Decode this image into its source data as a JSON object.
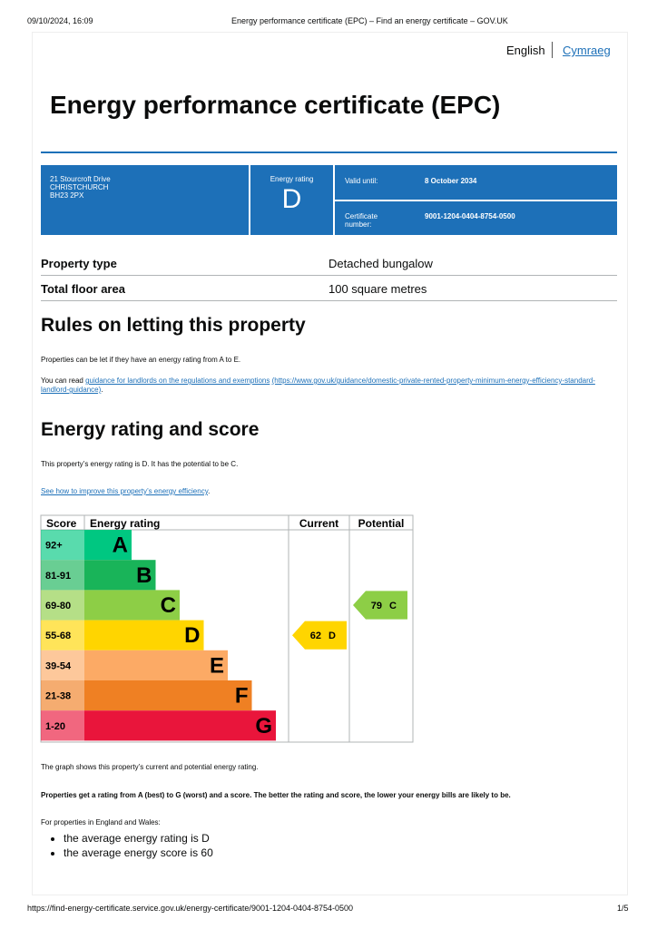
{
  "print_header": {
    "datetime": "09/10/2024, 16:09",
    "title": "Energy performance certificate (EPC) – Find an energy certificate – GOV.UK"
  },
  "language": {
    "current": "English",
    "other": "Cymraeg"
  },
  "title": "Energy performance certificate (EPC)",
  "summary": {
    "address": [
      "21 Stourcroft Drive",
      "CHRISTCHURCH",
      "BH23 2PX"
    ],
    "rating_label": "Energy rating",
    "rating": "D",
    "valid_until_label": "Valid until:",
    "valid_until": "8 October 2034",
    "cert_label": "Certificate number:",
    "cert_number": "9001-1204-0404-8754-0500"
  },
  "property": [
    {
      "label": "Property type",
      "value": "Detached bungalow"
    },
    {
      "label": "Total floor area",
      "value": "100 square metres"
    }
  ],
  "letting": {
    "heading": "Rules on letting this property",
    "text": "Properties can be let if they have an energy rating from A to E.",
    "link_prefix": "You can read",
    "link_text": "guidance for landlords on the regulations and exemptions",
    "link_url": "(https://www.gov.uk/guidance/domestic-private-rented-property-minimum-energy-efficiency-standard-landlord-guidance)",
    "link_suffix": "."
  },
  "rating_section": {
    "heading": "Energy rating and score",
    "text": "This property’s energy rating is D. It has the potential to be C.",
    "link": "See how to improve this property’s energy efficiency",
    "link_suffix": "."
  },
  "graph": {
    "headers": [
      "Score",
      "Energy rating",
      "Current",
      "Potential"
    ],
    "bands": [
      {
        "score": "92+",
        "letter": "A",
        "color": "#00c781"
      },
      {
        "score": "81-91",
        "letter": "B",
        "color": "#19b459"
      },
      {
        "score": "69-80",
        "letter": "C",
        "color": "#8dce46"
      },
      {
        "score": "55-68",
        "letter": "D",
        "color": "#ffd500"
      },
      {
        "score": "39-54",
        "letter": "E",
        "color": "#fcaa65"
      },
      {
        "score": "21-38",
        "letter": "F",
        "color": "#ef8023"
      },
      {
        "score": "1-20",
        "letter": "G",
        "color": "#e9153b"
      }
    ],
    "current": {
      "score": 62,
      "letter": "D"
    },
    "potential": {
      "score": 79,
      "letter": "C"
    }
  },
  "after_graph": {
    "caption": "The graph shows this property’s current and potential energy rating.",
    "explain_bold": "Properties get a rating from A (best) to G (worst) and a score.",
    "explain_rest": "The better the rating and score, the lower your energy bills are likely to be.",
    "average_intro": "For properties in England and Wales:",
    "averages": [
      "the average energy rating is D",
      "the average energy score is 60"
    ]
  },
  "footer": {
    "url": "https://find-energy-certificate.service.gov.uk/energy-certificate/9001-1204-0404-8754-0500",
    "page": "1/5"
  }
}
